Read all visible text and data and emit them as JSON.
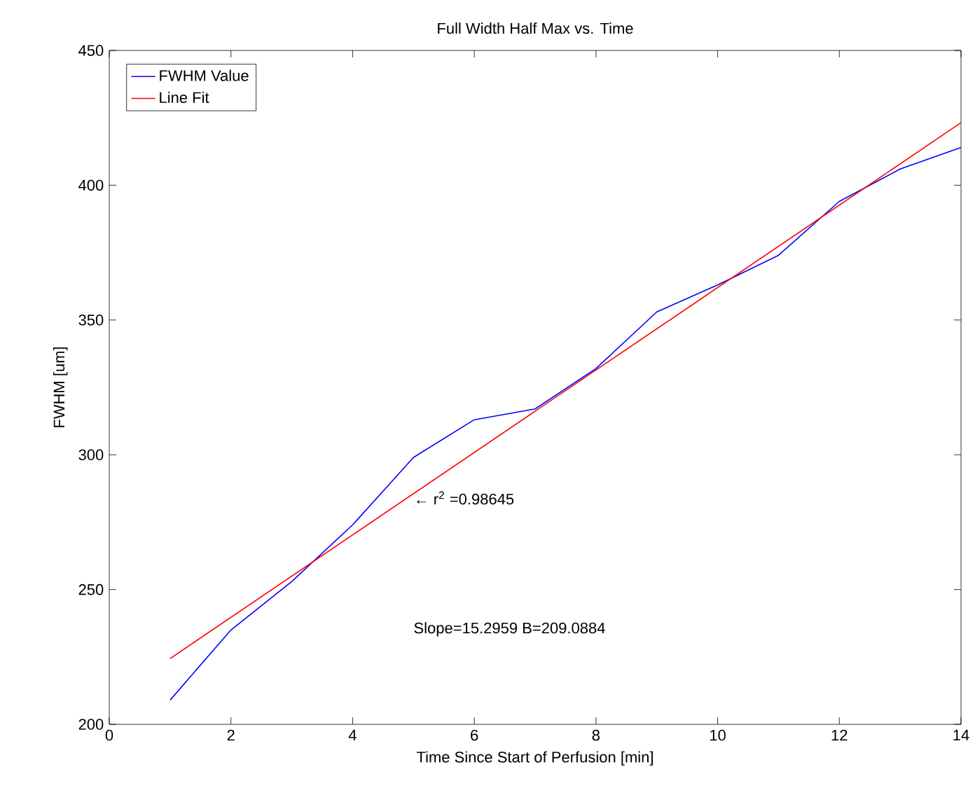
{
  "chart_data": {
    "type": "line",
    "title": "Full Width Half Max vs. Time",
    "xlabel": "Time Since Start of Perfusion [min]",
    "ylabel": "FWHM [um]",
    "x": [
      1,
      2,
      3,
      4,
      5,
      6,
      7,
      8,
      9,
      10,
      11,
      12,
      13,
      14
    ],
    "series": [
      {
        "name": "FWHM Value",
        "color": "#0000ff",
        "values": [
          209,
          235,
          253,
          274,
          299,
          313,
          317,
          332,
          353,
          363,
          374,
          394,
          406,
          414
        ]
      },
      {
        "name": "Line Fit",
        "color": "#ff0000",
        "x": [
          1,
          14
        ],
        "values": [
          224.4,
          423.2
        ]
      }
    ],
    "xlim": [
      0,
      14
    ],
    "ylim": [
      200,
      450
    ],
    "xticks": [
      0,
      2,
      4,
      6,
      8,
      10,
      12,
      14
    ],
    "yticks": [
      200,
      250,
      300,
      350,
      400,
      450
    ],
    "legend": "top left",
    "annotations": [
      {
        "text": "← r$^{2}$ =0.98645",
        "x": 5,
        "y": 284
      },
      "Slope=15.2959   B=209.0884"
    ]
  }
}
